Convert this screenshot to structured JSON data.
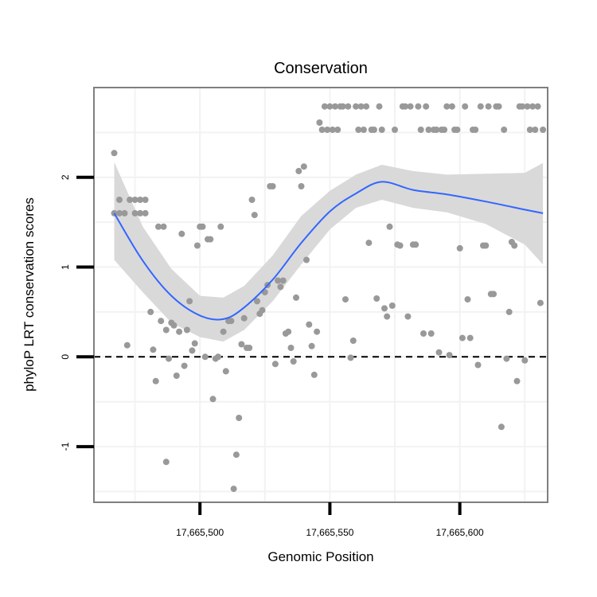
{
  "chart_data": {
    "type": "scatter",
    "title": "Conservation",
    "xlabel": "Genomic Position",
    "ylabel": "phyloP LRT conservation scores",
    "xlim": [
      17665459.2,
      17665633.8
    ],
    "ylim": [
      -1.62,
      3.0
    ],
    "x_ticks": [
      17665500,
      17665550,
      17665600
    ],
    "x_tick_labels": [
      "17,665,500",
      "17,665,550",
      "17,665,600"
    ],
    "y_ticks": [
      -1,
      0,
      1,
      2
    ],
    "y_tick_labels": [
      "-1",
      "0",
      "1",
      "2"
    ],
    "reference_line_y": 0,
    "grid": true,
    "colors": {
      "points": "#999999",
      "smooth_line": "#3366ff",
      "confidence_band": "#d9d9d9",
      "panel_border": "#7f7f7f",
      "grid": "#f2f2f2"
    },
    "points": [
      {
        "x": 17665467,
        "y": 2.27
      },
      {
        "x": 17665467,
        "y": 1.6
      },
      {
        "x": 17665469,
        "y": 1.75
      },
      {
        "x": 17665469,
        "y": 1.6
      },
      {
        "x": 17665471,
        "y": 1.6
      },
      {
        "x": 17665472,
        "y": 0.13
      },
      {
        "x": 17665473,
        "y": 1.75
      },
      {
        "x": 17665475,
        "y": 1.75
      },
      {
        "x": 17665475,
        "y": 1.6
      },
      {
        "x": 17665477,
        "y": 1.75
      },
      {
        "x": 17665477,
        "y": 1.6
      },
      {
        "x": 17665479,
        "y": 1.75
      },
      {
        "x": 17665479,
        "y": 1.6
      },
      {
        "x": 17665481,
        "y": 0.5
      },
      {
        "x": 17665482,
        "y": 0.08
      },
      {
        "x": 17665483,
        "y": -0.27
      },
      {
        "x": 17665484,
        "y": 1.45
      },
      {
        "x": 17665485,
        "y": 0.4
      },
      {
        "x": 17665486,
        "y": 1.45
      },
      {
        "x": 17665487,
        "y": -1.17
      },
      {
        "x": 17665487,
        "y": 0.3
      },
      {
        "x": 17665488,
        "y": -0.02
      },
      {
        "x": 17665489,
        "y": 0.38
      },
      {
        "x": 17665490,
        "y": 0.35
      },
      {
        "x": 17665491,
        "y": -0.21
      },
      {
        "x": 17665492,
        "y": 0.28
      },
      {
        "x": 17665493,
        "y": 1.37
      },
      {
        "x": 17665494,
        "y": -0.1
      },
      {
        "x": 17665495,
        "y": 0.3
      },
      {
        "x": 17665496,
        "y": 0.62
      },
      {
        "x": 17665497,
        "y": 0.07
      },
      {
        "x": 17665498,
        "y": 0.15
      },
      {
        "x": 17665499,
        "y": 1.24
      },
      {
        "x": 17665500,
        "y": 1.45
      },
      {
        "x": 17665501,
        "y": 1.45
      },
      {
        "x": 17665502,
        "y": 0.0
      },
      {
        "x": 17665503,
        "y": 1.31
      },
      {
        "x": 17665504,
        "y": 1.31
      },
      {
        "x": 17665505,
        "y": -0.47
      },
      {
        "x": 17665506,
        "y": -0.02
      },
      {
        "x": 17665507,
        "y": 0.0
      },
      {
        "x": 17665508,
        "y": 1.45
      },
      {
        "x": 17665509,
        "y": 0.28
      },
      {
        "x": 17665510,
        "y": -0.16
      },
      {
        "x": 17665511,
        "y": 0.4
      },
      {
        "x": 17665512,
        "y": 0.4
      },
      {
        "x": 17665513,
        "y": -1.47
      },
      {
        "x": 17665514,
        "y": -1.09
      },
      {
        "x": 17665515,
        "y": -0.68
      },
      {
        "x": 17665516,
        "y": 0.14
      },
      {
        "x": 17665517,
        "y": 0.43
      },
      {
        "x": 17665518,
        "y": 0.1
      },
      {
        "x": 17665519,
        "y": 0.1
      },
      {
        "x": 17665520,
        "y": 1.75
      },
      {
        "x": 17665521,
        "y": 1.58
      },
      {
        "x": 17665522,
        "y": 0.62
      },
      {
        "x": 17665523,
        "y": 0.48
      },
      {
        "x": 17665524,
        "y": 0.52
      },
      {
        "x": 17665525,
        "y": 0.72
      },
      {
        "x": 17665526,
        "y": 0.8
      },
      {
        "x": 17665527,
        "y": 1.9
      },
      {
        "x": 17665528,
        "y": 1.9
      },
      {
        "x": 17665529,
        "y": -0.08
      },
      {
        "x": 17665530,
        "y": 0.85
      },
      {
        "x": 17665531,
        "y": 0.78
      },
      {
        "x": 17665532,
        "y": 0.85
      },
      {
        "x": 17665533,
        "y": 0.26
      },
      {
        "x": 17665534,
        "y": 0.28
      },
      {
        "x": 17665535,
        "y": 0.1
      },
      {
        "x": 17665536,
        "y": -0.05
      },
      {
        "x": 17665537,
        "y": 0.66
      },
      {
        "x": 17665538,
        "y": 2.07
      },
      {
        "x": 17665539,
        "y": 1.9
      },
      {
        "x": 17665540,
        "y": 2.12
      },
      {
        "x": 17665541,
        "y": 1.08
      },
      {
        "x": 17665542,
        "y": 0.36
      },
      {
        "x": 17665543,
        "y": 0.12
      },
      {
        "x": 17665544,
        "y": -0.2
      },
      {
        "x": 17665545,
        "y": 0.28
      },
      {
        "x": 17665546,
        "y": 2.61
      },
      {
        "x": 17665547,
        "y": 2.53
      },
      {
        "x": 17665548,
        "y": 2.79
      },
      {
        "x": 17665549,
        "y": 2.53
      },
      {
        "x": 17665550,
        "y": 2.79
      },
      {
        "x": 17665551,
        "y": 2.53
      },
      {
        "x": 17665552,
        "y": 2.79
      },
      {
        "x": 17665553,
        "y": 2.53
      },
      {
        "x": 17665554,
        "y": 2.79
      },
      {
        "x": 17665555,
        "y": 2.79
      },
      {
        "x": 17665556,
        "y": 0.64
      },
      {
        "x": 17665557,
        "y": 2.79
      },
      {
        "x": 17665558,
        "y": -0.01
      },
      {
        "x": 17665559,
        "y": 0.18
      },
      {
        "x": 17665560,
        "y": 2.79
      },
      {
        "x": 17665561,
        "y": 2.53
      },
      {
        "x": 17665562,
        "y": 2.79
      },
      {
        "x": 17665563,
        "y": 2.53
      },
      {
        "x": 17665564,
        "y": 2.79
      },
      {
        "x": 17665565,
        "y": 1.27
      },
      {
        "x": 17665566,
        "y": 2.53
      },
      {
        "x": 17665567,
        "y": 2.53
      },
      {
        "x": 17665568,
        "y": 0.65
      },
      {
        "x": 17665569,
        "y": 2.79
      },
      {
        "x": 17665570,
        "y": 2.53
      },
      {
        "x": 17665571,
        "y": 0.54
      },
      {
        "x": 17665572,
        "y": 0.45
      },
      {
        "x": 17665573,
        "y": 1.45
      },
      {
        "x": 17665574,
        "y": 0.57
      },
      {
        "x": 17665575,
        "y": 2.53
      },
      {
        "x": 17665576,
        "y": 1.25
      },
      {
        "x": 17665577,
        "y": 1.24
      },
      {
        "x": 17665578,
        "y": 2.79
      },
      {
        "x": 17665579,
        "y": 2.79
      },
      {
        "x": 17665580,
        "y": 0.45
      },
      {
        "x": 17665581,
        "y": 2.79
      },
      {
        "x": 17665582,
        "y": 1.25
      },
      {
        "x": 17665583,
        "y": 1.25
      },
      {
        "x": 17665584,
        "y": 2.79
      },
      {
        "x": 17665585,
        "y": 2.53
      },
      {
        "x": 17665586,
        "y": 0.26
      },
      {
        "x": 17665587,
        "y": 2.79
      },
      {
        "x": 17665588,
        "y": 2.53
      },
      {
        "x": 17665589,
        "y": 0.26
      },
      {
        "x": 17665590,
        "y": 2.53
      },
      {
        "x": 17665591,
        "y": 2.53
      },
      {
        "x": 17665592,
        "y": 0.05
      },
      {
        "x": 17665593,
        "y": 2.53
      },
      {
        "x": 17665594,
        "y": 2.53
      },
      {
        "x": 17665595,
        "y": 2.79
      },
      {
        "x": 17665596,
        "y": 0.02
      },
      {
        "x": 17665597,
        "y": 2.79
      },
      {
        "x": 17665598,
        "y": 2.53
      },
      {
        "x": 17665599,
        "y": 2.53
      },
      {
        "x": 17665600,
        "y": 1.21
      },
      {
        "x": 17665601,
        "y": 0.21
      },
      {
        "x": 17665602,
        "y": 2.79
      },
      {
        "x": 17665603,
        "y": 0.64
      },
      {
        "x": 17665604,
        "y": 0.21
      },
      {
        "x": 17665605,
        "y": 2.53
      },
      {
        "x": 17665606,
        "y": 2.53
      },
      {
        "x": 17665607,
        "y": -0.09
      },
      {
        "x": 17665608,
        "y": 2.79
      },
      {
        "x": 17665609,
        "y": 1.24
      },
      {
        "x": 17665610,
        "y": 1.24
      },
      {
        "x": 17665611,
        "y": 2.79
      },
      {
        "x": 17665612,
        "y": 0.7
      },
      {
        "x": 17665613,
        "y": 0.7
      },
      {
        "x": 17665614,
        "y": 2.79
      },
      {
        "x": 17665615,
        "y": 2.79
      },
      {
        "x": 17665616,
        "y": -0.78
      },
      {
        "x": 17665617,
        "y": 2.53
      },
      {
        "x": 17665618,
        "y": -0.02
      },
      {
        "x": 17665619,
        "y": 0.5
      },
      {
        "x": 17665620,
        "y": 1.28
      },
      {
        "x": 17665621,
        "y": 1.24
      },
      {
        "x": 17665622,
        "y": -0.27
      },
      {
        "x": 17665623,
        "y": 2.79
      },
      {
        "x": 17665624,
        "y": 2.79
      },
      {
        "x": 17665625,
        "y": -0.04
      },
      {
        "x": 17665626,
        "y": 2.79
      },
      {
        "x": 17665627,
        "y": 2.53
      },
      {
        "x": 17665628,
        "y": 2.79
      },
      {
        "x": 17665629,
        "y": 2.53
      },
      {
        "x": 17665630,
        "y": 2.79
      },
      {
        "x": 17665631,
        "y": 0.6
      },
      {
        "x": 17665632,
        "y": 2.53
      }
    ],
    "smooth": {
      "x": [
        17665467,
        17665478,
        17665489,
        17665500,
        17665509,
        17665517,
        17665528,
        17665539,
        17665550,
        17665560,
        17665570,
        17665582,
        17665595,
        17665610,
        17665625,
        17665632
      ],
      "y": [
        1.6,
        1.07,
        0.68,
        0.46,
        0.42,
        0.55,
        0.86,
        1.27,
        1.62,
        1.82,
        1.95,
        1.86,
        1.81,
        1.73,
        1.64,
        1.6
      ],
      "lower": [
        1.08,
        0.72,
        0.38,
        0.22,
        0.17,
        0.3,
        0.62,
        1.03,
        1.42,
        1.66,
        1.75,
        1.66,
        1.61,
        1.48,
        1.25,
        1.03
      ],
      "upper": [
        2.17,
        1.45,
        0.98,
        0.68,
        0.66,
        0.79,
        1.13,
        1.57,
        1.85,
        2.03,
        2.14,
        2.07,
        2.03,
        2.04,
        2.05,
        2.16
      ]
    }
  }
}
